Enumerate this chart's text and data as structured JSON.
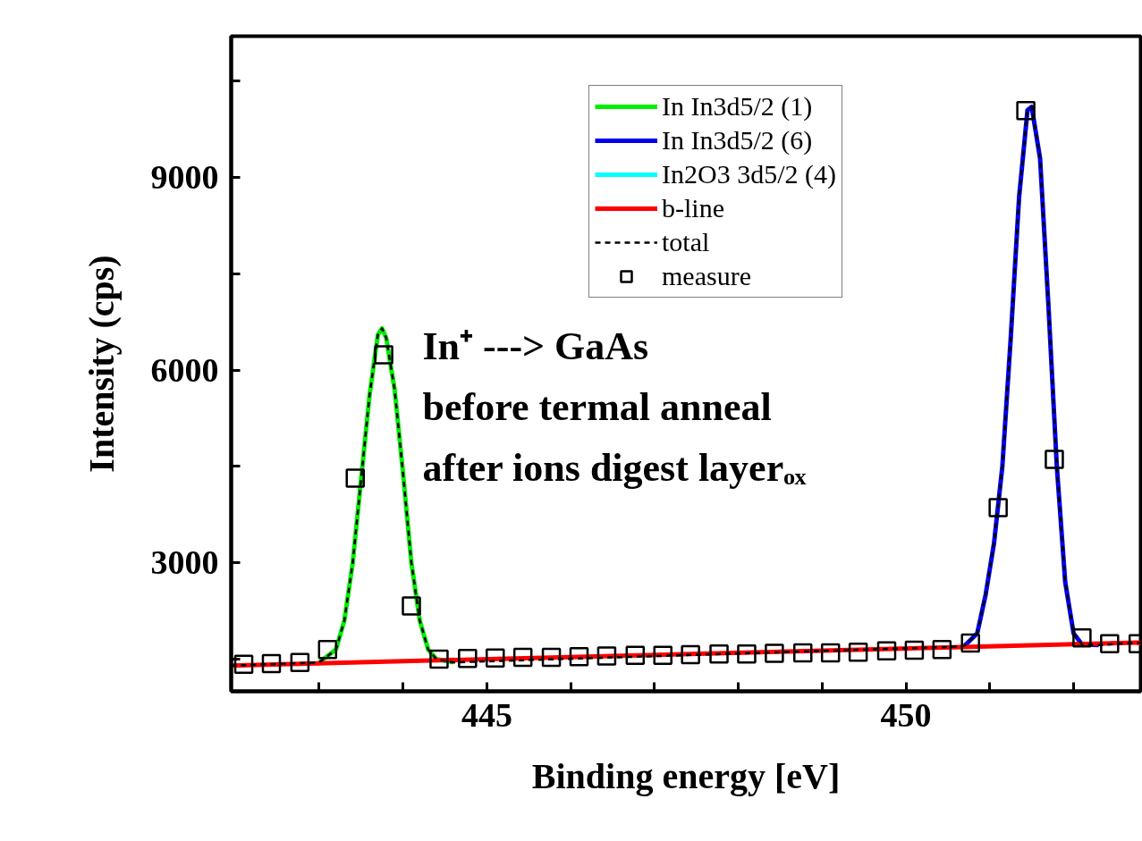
{
  "chart_data": {
    "type": "line",
    "xlabel": "Binding energy [eV]",
    "ylabel": "Intensity (cps)",
    "xlim": [
      441.95,
      452.8
    ],
    "ylim": [
      1000,
      11200
    ],
    "xticks": [
      {
        "value": 443,
        "label": null
      },
      {
        "value": 444,
        "label": null
      },
      445,
      {
        "value": 446,
        "label": null
      },
      {
        "value": 447,
        "label": null
      },
      {
        "value": 448,
        "label": null
      },
      {
        "value": 449,
        "label": null
      },
      450,
      {
        "value": 451,
        "label": null
      },
      {
        "value": 452,
        "label": null
      }
    ],
    "yticks": [
      {
        "value": 1500,
        "label": null
      },
      3000,
      {
        "value": 4500,
        "label": null
      },
      6000,
      {
        "value": 7500,
        "label": null
      },
      9000,
      {
        "value": 10500,
        "label": null
      }
    ],
    "grid": false,
    "legend": "top",
    "annotations": [
      "In⁺  --->  GaAs",
      "before termal anneal",
      "after ions digest layerₒₓ"
    ],
    "series": [
      {
        "name": "In In3d5/2 (1)",
        "color": "#00ee00",
        "line_style": "solid",
        "marker": "none",
        "x": [
          443.0,
          443.2,
          443.3,
          443.4,
          443.5,
          443.6,
          443.7,
          443.75,
          443.8,
          443.9,
          444.0,
          444.1,
          444.2,
          444.3,
          444.4,
          444.6
        ],
        "values": [
          1450,
          1650,
          2100,
          3000,
          4300,
          5600,
          6550,
          6650,
          6500,
          5700,
          4400,
          3000,
          2100,
          1650,
          1500,
          1450
        ]
      },
      {
        "name": "In In3d5/2 (6)",
        "color": "#0000ee",
        "line_style": "solid",
        "marker": "none",
        "x": [
          450.7,
          450.85,
          450.95,
          451.05,
          451.15,
          451.25,
          451.35,
          451.45,
          451.5,
          451.6,
          451.7,
          451.8,
          451.9,
          452.0,
          452.1,
          452.3
        ],
        "values": [
          1710,
          1900,
          2500,
          3300,
          4500,
          6500,
          8700,
          10050,
          10100,
          9300,
          7000,
          4500,
          2700,
          1900,
          1730,
          1720
        ]
      },
      {
        "name": "In2O3 3d5/2 (4)",
        "color": "#00ffff",
        "line_style": "solid",
        "marker": "none"
      },
      {
        "name": "b-line",
        "color": "#ff0000",
        "line_style": "solid",
        "marker": "none",
        "x": [
          441.95,
          452.8
        ],
        "values": [
          1400,
          1760
        ]
      },
      {
        "name": "total",
        "color": "#000000",
        "line_style": "dashed",
        "marker": "none",
        "x": [
          441.95,
          443.0,
          443.2,
          443.3,
          443.4,
          443.5,
          443.6,
          443.7,
          443.75,
          443.8,
          443.9,
          444.0,
          444.1,
          444.2,
          444.3,
          444.4,
          444.6,
          450.5,
          450.7,
          450.85,
          450.95,
          451.05,
          451.15,
          451.25,
          451.35,
          451.45,
          451.5,
          451.6,
          451.7,
          451.8,
          451.9,
          452.0,
          452.1,
          452.3,
          452.8
        ],
        "values": [
          1400,
          1450,
          1650,
          2100,
          3000,
          4300,
          5600,
          6550,
          6650,
          6500,
          5700,
          4400,
          3000,
          2100,
          1650,
          1500,
          1450,
          1690,
          1710,
          1900,
          2500,
          3300,
          4500,
          6500,
          8700,
          10050,
          10100,
          9300,
          7000,
          4500,
          2700,
          1900,
          1730,
          1720,
          1760
        ]
      },
      {
        "name": "measure",
        "type": "scatter",
        "color": "#000000",
        "marker": "square",
        "x": [
          442.1,
          442.43,
          442.77,
          443.1,
          443.43,
          443.77,
          444.1,
          444.43,
          444.77,
          445.1,
          445.43,
          445.77,
          446.1,
          446.43,
          446.77,
          447.1,
          447.43,
          447.77,
          448.1,
          448.43,
          448.77,
          449.1,
          449.43,
          449.77,
          450.1,
          450.43,
          450.77,
          451.1,
          451.43,
          451.77,
          452.1,
          452.43,
          452.77
        ],
        "values": [
          1420,
          1430,
          1450,
          1650,
          4320,
          6240,
          2330,
          1500,
          1510,
          1520,
          1530,
          1530,
          1540,
          1550,
          1560,
          1560,
          1570,
          1580,
          1580,
          1590,
          1600,
          1600,
          1610,
          1630,
          1640,
          1650,
          1750,
          3860,
          10040,
          4610,
          1830,
          1740,
          1740
        ]
      }
    ]
  }
}
